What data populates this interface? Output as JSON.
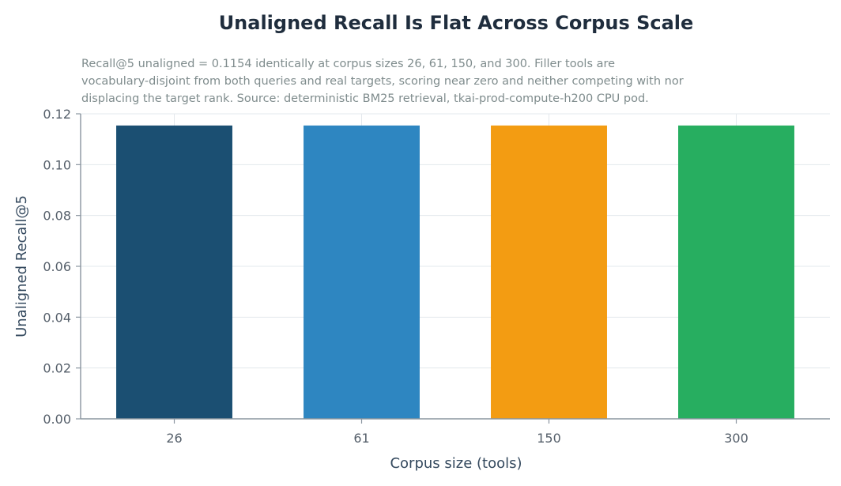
{
  "chart_data": {
    "type": "bar",
    "title": "Unaligned Recall Is Flat Across Corpus Scale",
    "subtitle_lines": [
      "Recall@5 unaligned = 0.1154 identically at corpus sizes 26, 61, 150, and 300. Filler tools are",
      "vocabulary-disjoint from both queries and real targets, scoring near zero and neither competing with nor",
      "displacing the target rank. Source: deterministic BM25 retrieval, tkai-prod-compute-h200 CPU pod."
    ],
    "xlabel": "Corpus size (tools)",
    "ylabel": "Unaligned Recall@5",
    "categories": [
      "26",
      "61",
      "150",
      "300"
    ],
    "values": [
      0.1154,
      0.1154,
      0.1154,
      0.1154
    ],
    "colors": [
      "#1b4f72",
      "#2e86c1",
      "#f39c12",
      "#27ae60"
    ],
    "ylim": [
      0,
      0.12
    ],
    "yticks": [
      "0.00",
      "0.02",
      "0.04",
      "0.06",
      "0.08",
      "0.10",
      "0.12"
    ],
    "grid": true,
    "legend": "none"
  }
}
